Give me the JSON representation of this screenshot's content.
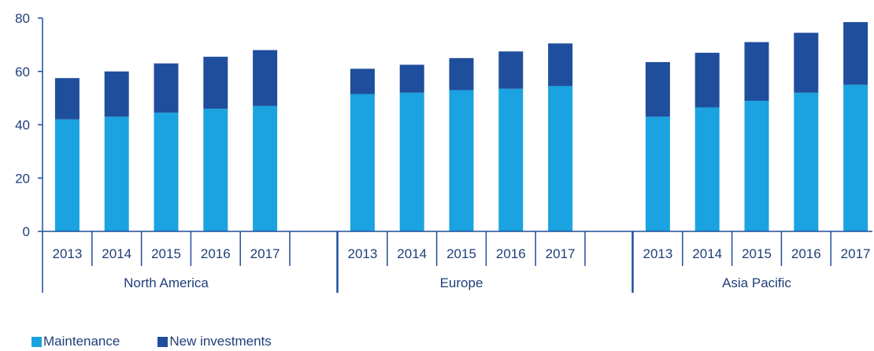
{
  "chart_data": {
    "type": "bar",
    "stacked": true,
    "ylim": [
      0,
      80
    ],
    "yticks": [
      0,
      20,
      40,
      60,
      80
    ],
    "grid": false,
    "legend_position": "bottom-left",
    "groups": [
      {
        "name": "North America",
        "categories": [
          "2013",
          "2014",
          "2015",
          "2016",
          "2017"
        ]
      },
      {
        "name": "Europe",
        "categories": [
          "2013",
          "2014",
          "2015",
          "2016",
          "2017"
        ]
      },
      {
        "name": "Asia Pacific",
        "categories": [
          "2013",
          "2014",
          "2015",
          "2016",
          "2017"
        ]
      }
    ],
    "series": [
      {
        "name": "Maintenance",
        "color": "#1aa3e0",
        "values": [
          [
            42,
            43,
            44.5,
            46,
            47
          ],
          [
            51.5,
            52,
            53,
            53.5,
            54.5
          ],
          [
            43,
            46.5,
            49,
            52,
            55
          ]
        ]
      },
      {
        "name": "New investments",
        "color": "#1f4e9c",
        "values": [
          [
            15.5,
            17,
            18.5,
            19.5,
            21
          ],
          [
            9.5,
            10.5,
            12,
            14,
            16
          ],
          [
            20.5,
            20.5,
            22,
            22.5,
            23.5
          ]
        ]
      }
    ]
  }
}
